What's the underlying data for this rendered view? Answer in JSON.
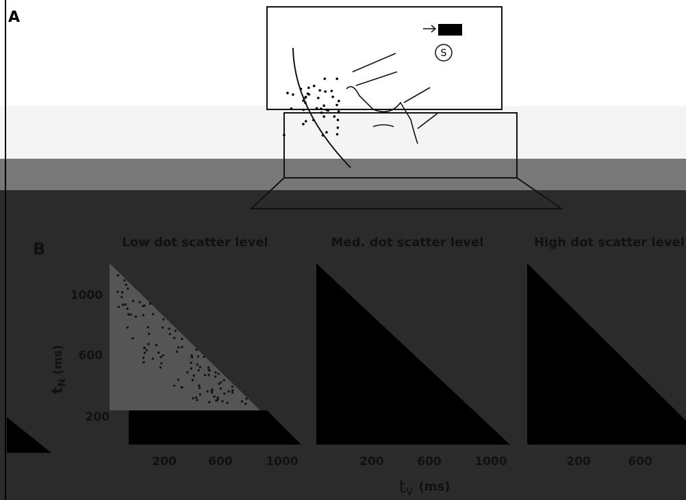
{
  "panel_a": {
    "label": "A",
    "screen_icon": "S"
  },
  "panel_b": {
    "label": "B",
    "titles": [
      "Low dot scatter level",
      "Med. dot scatter level",
      "High dot scatter level"
    ],
    "y_label": {
      "symbol": "t",
      "subscript": "N",
      "unit": "(ms)"
    },
    "yticks": [
      "1000",
      "600",
      "200"
    ],
    "xticks": [
      [
        "200",
        "600",
        "1000"
      ],
      [
        "200",
        "600",
        "1000"
      ],
      [
        "200",
        "600"
      ]
    ],
    "x_label": {
      "symbol": "t",
      "subscript": "V",
      "unit": "(ms)"
    }
  }
}
